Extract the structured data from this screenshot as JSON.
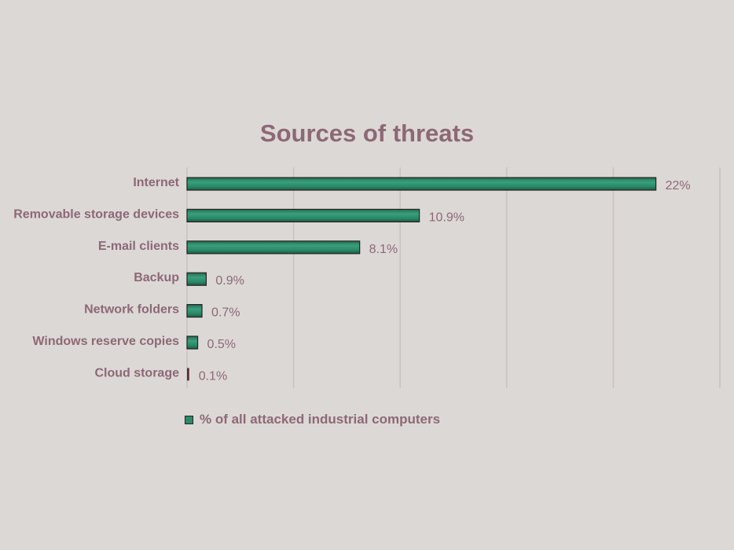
{
  "chart_data": {
    "type": "bar",
    "orientation": "horizontal",
    "title": "Sources of threats",
    "categories": [
      "Internet",
      "Removable storage devices",
      "E-mail clients",
      "Backup",
      "Network folders",
      "Windows reserve copies",
      "Cloud storage"
    ],
    "series": [
      {
        "name": "% of all attacked industrial computers",
        "values": [
          22,
          10.9,
          8.1,
          0.9,
          0.7,
          0.5,
          0.1
        ],
        "labels": [
          "22%",
          "10.9%",
          "8.1%",
          "0.9%",
          "0.7%",
          "0.5%",
          "0.1%"
        ]
      }
    ],
    "xlim": [
      0,
      25
    ],
    "grid": true,
    "grid_step": 5,
    "legend_position": "bottom",
    "colors": {
      "bar": "#2a8a6a",
      "bar_border": "#2b2020",
      "text": "#8d6877",
      "grid": "#c8c2c2",
      "background": "#dcd8d6"
    }
  }
}
